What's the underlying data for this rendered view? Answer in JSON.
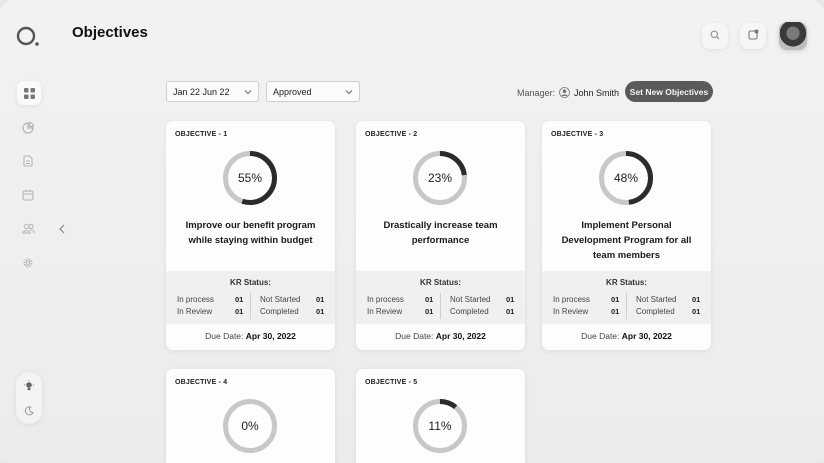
{
  "page": {
    "title": "Objectives"
  },
  "sidebar": {
    "icons": [
      "logo-ring-icon",
      "dashboard-grid-icon",
      "pie-chart-icon",
      "document-icon",
      "calendar-icon",
      "users-icon",
      "settings-gear-icon"
    ],
    "theme": [
      "light-mode-bulb-icon",
      "dark-mode-moon-icon"
    ]
  },
  "header": {
    "search_icon": "search-icon",
    "notification_icon": "notification-icon"
  },
  "filters": {
    "date_range": "Jan 22 Jun 22",
    "status": "Approved"
  },
  "manager": {
    "label": "Manager:",
    "name": "John Smith"
  },
  "actions": {
    "new_objectives": "Set New Objectives"
  },
  "kr_labels": {
    "title": "KR Status:",
    "in_process": "In process",
    "in_review": "In Review",
    "not_started": "Not Started",
    "completed": "Completed",
    "due_prefix": "Due Date:"
  },
  "colors": {
    "progress": "#2b2b2b",
    "track": "#c8c8c8",
    "button": "#5a5a5a"
  },
  "objectives": [
    {
      "label": "OBJECTIVE - 1",
      "progress": 55,
      "progress_text": "55%",
      "title": "Improve our benefit program while staying within budget",
      "kr": {
        "in_process": "01",
        "in_review": "01",
        "not_started": "01",
        "completed": "01"
      },
      "due": "Apr 30, 2022"
    },
    {
      "label": "OBJECTIVE - 2",
      "progress": 23,
      "progress_text": "23%",
      "title": "Drastically increase team performance",
      "kr": {
        "in_process": "01",
        "in_review": "01",
        "not_started": "01",
        "completed": "01"
      },
      "due": "Apr 30, 2022"
    },
    {
      "label": "OBJECTIVE - 3",
      "progress": 48,
      "progress_text": "48%",
      "title": "Implement Personal Development Program for all team members",
      "kr": {
        "in_process": "01",
        "in_review": "01",
        "not_started": "01",
        "completed": "01"
      },
      "due": "Apr 30, 2022"
    },
    {
      "label": "OBJECTIVE - 4",
      "progress": 0,
      "progress_text": "0%"
    },
    {
      "label": "OBJECTIVE - 5",
      "progress": 11,
      "progress_text": "11%"
    }
  ]
}
